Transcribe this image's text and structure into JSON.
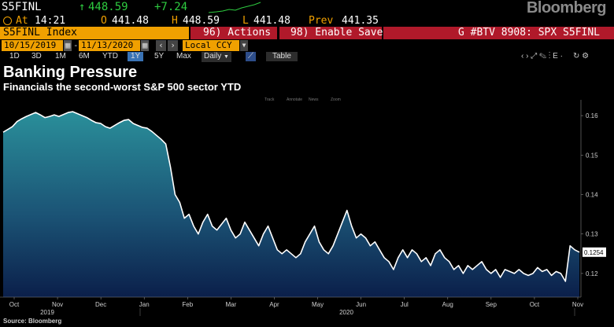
{
  "quote": {
    "ticker": "S5FINL",
    "arrow": "↑",
    "last": "448.59",
    "change": "+7.24"
  },
  "row2": {
    "at_label": "At",
    "time": "14:21",
    "o_label": "O",
    "open": "441.48",
    "h_label": "H",
    "high": "448.59",
    "l_label": "L",
    "low": "441.48",
    "prev_label": "Prev",
    "prev": "441.35"
  },
  "brand": "Bloomberg",
  "cmdbar": {
    "security": "S5FINL Index",
    "actions": "96) Actions",
    "save": "98) Enable Save",
    "gfunc": "G #BTV 8908: SPX S5FINL"
  },
  "dates": {
    "start": "10/15/2019",
    "end": "11/13/2020",
    "currency": "Local CCY"
  },
  "periods": [
    "1D",
    "3D",
    "1M",
    "6M",
    "YTD",
    "1Y",
    "5Y",
    "Max"
  ],
  "selected_period": "1Y",
  "frequency": "Daily",
  "table_label": "Table",
  "title": "Banking Pressure",
  "subtitle": "Financials the second-worst S&P 500 sector YTD",
  "source": "Source: Bloomberg",
  "chart_toolbar": [
    "Track",
    "Annotate",
    "News",
    "Zoom"
  ],
  "colors": {
    "accent": "#f0a000",
    "red_bar": "#b0192a",
    "area_top": "#2a8f9a",
    "area_bottom": "#0b1f4a"
  },
  "chart_data": {
    "type": "area",
    "x_ticks": [
      "Oct",
      "Nov",
      "Dec",
      "Jan",
      "Feb",
      "Mar",
      "Apr",
      "May",
      "Jun",
      "Jul",
      "Aug",
      "Sep",
      "Oct",
      "Nov"
    ],
    "year_labels": [
      "2019",
      "2020"
    ],
    "y_ticks": [
      0.12,
      0.13,
      0.14,
      0.15,
      0.16
    ],
    "ylim": [
      0.114,
      0.164
    ],
    "last_value_label": "0.1254",
    "grid": false,
    "values": [
      0.1558,
      0.1565,
      0.1572,
      0.1585,
      0.1592,
      0.1598,
      0.1603,
      0.1608,
      0.1602,
      0.1595,
      0.1598,
      0.1602,
      0.1598,
      0.1603,
      0.1608,
      0.161,
      0.1605,
      0.16,
      0.1595,
      0.1588,
      0.1582,
      0.158,
      0.1572,
      0.1568,
      0.1575,
      0.1582,
      0.1588,
      0.159,
      0.158,
      0.1575,
      0.157,
      0.1568,
      0.156,
      0.155,
      0.154,
      0.1528,
      0.147,
      0.14,
      0.138,
      0.134,
      0.135,
      0.132,
      0.13,
      0.133,
      0.135,
      0.132,
      0.131,
      0.1325,
      0.134,
      0.131,
      0.129,
      0.13,
      0.133,
      0.131,
      0.129,
      0.127,
      0.13,
      0.132,
      0.129,
      0.126,
      0.125,
      0.126,
      0.125,
      0.124,
      0.125,
      0.128,
      0.13,
      0.132,
      0.128,
      0.126,
      0.125,
      0.127,
      0.13,
      0.133,
      0.136,
      0.132,
      0.129,
      0.13,
      0.129,
      0.127,
      0.128,
      0.126,
      0.124,
      0.123,
      0.121,
      0.124,
      0.126,
      0.124,
      0.126,
      0.125,
      0.123,
      0.124,
      0.122,
      0.125,
      0.126,
      0.124,
      0.123,
      0.121,
      0.122,
      0.12,
      0.122,
      0.121,
      0.122,
      0.123,
      0.121,
      0.12,
      0.121,
      0.119,
      0.121,
      0.1205,
      0.12,
      0.121,
      0.12,
      0.1195,
      0.12,
      0.1215,
      0.1205,
      0.121,
      0.1195,
      0.1205,
      0.12,
      0.118,
      0.127,
      0.126,
      0.1254
    ]
  }
}
